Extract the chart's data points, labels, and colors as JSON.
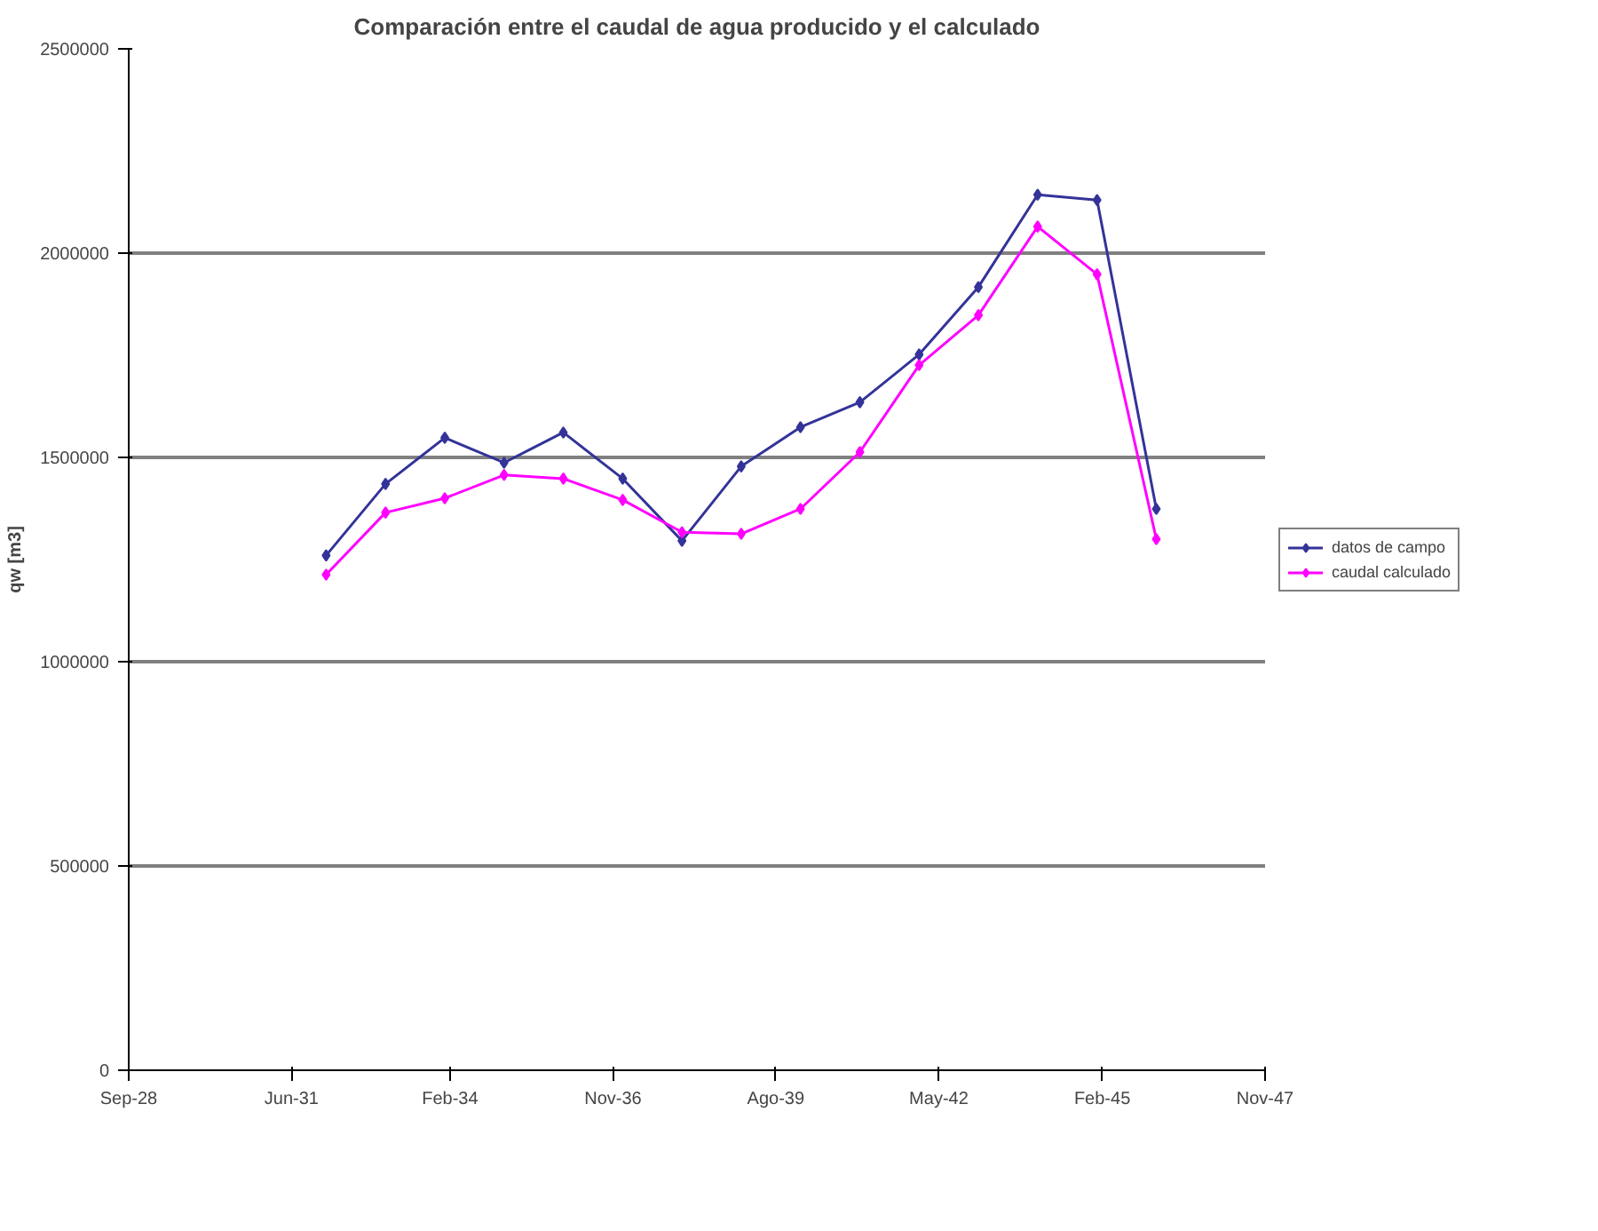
{
  "chart_data": {
    "type": "line",
    "title": "Comparación entre el caudal de agua producido y el calculado",
    "ylabel": "qw [m3]",
    "x": [
      "1931-12-31",
      "1932-12-31",
      "1933-12-31",
      "1934-12-31",
      "1935-12-31",
      "1936-12-31",
      "1937-12-31",
      "1938-12-31",
      "1939-12-31",
      "1940-12-31",
      "1941-12-31",
      "1942-12-31",
      "1943-12-31",
      "1944-12-31",
      "1945-12-31"
    ],
    "series": [
      {
        "name": "datos de campo",
        "color": "#333399",
        "values": [
          1260000,
          1435000,
          1548000,
          1487000,
          1561000,
          1448000,
          1296000,
          1478000,
          1574000,
          1635000,
          1752000,
          1917000,
          2143000,
          2130000,
          1374000
        ]
      },
      {
        "name": "caudal calculado",
        "color": "#ff00ff",
        "values": [
          1213000,
          1365000,
          1400000,
          1457000,
          1448000,
          1396000,
          1317000,
          1313000,
          1374000,
          1513000,
          1726000,
          1848000,
          2065000,
          1948000,
          1300000
        ]
      }
    ],
    "xlim": [
      "1928-09-01",
      "1947-11-01"
    ],
    "xticks": [
      {
        "value": "1928-09-01",
        "label": "Sep-28"
      },
      {
        "value": "1931-06-01",
        "label": "Jun-31"
      },
      {
        "value": "1934-02-01",
        "label": "Feb-34"
      },
      {
        "value": "1936-11-01",
        "label": "Nov-36"
      },
      {
        "value": "1939-08-01",
        "label": "Ago-39"
      },
      {
        "value": "1942-05-01",
        "label": "May-42"
      },
      {
        "value": "1945-02-01",
        "label": "Feb-45"
      },
      {
        "value": "1947-11-01",
        "label": "Nov-47"
      }
    ],
    "ylim": [
      0,
      2500000
    ],
    "yticks": [
      0,
      500000,
      1000000,
      1500000,
      2000000,
      2500000
    ],
    "grid": "y",
    "legend": "right",
    "marker": "diamond",
    "line_style": "solid"
  }
}
